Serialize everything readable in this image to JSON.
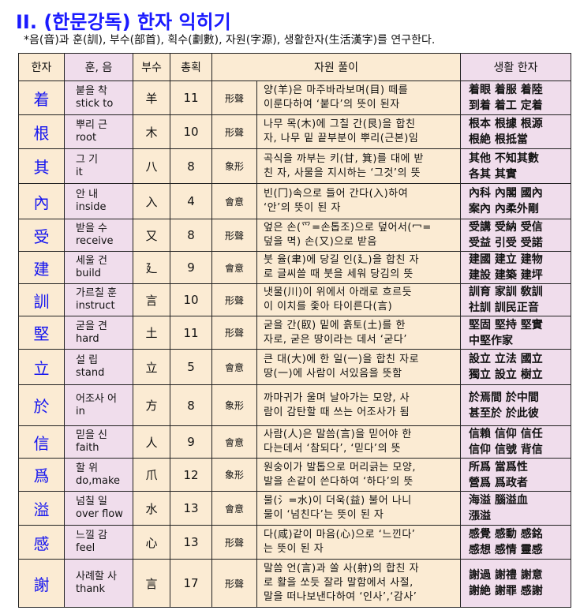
{
  "title": "II. (한문강독) 한자 익히기",
  "subtitle": "*음(音)과 훈(訓), 부수(部首), 획수(劃數), 자원(字源), 생활한자(生活漢字)를 연구한다.",
  "headers": [
    "한자",
    "훈, 음",
    "부수",
    "총획",
    "자원 풀이",
    "생활 한자"
  ],
  "rows": [
    {
      "hanja": "着",
      "hun": "붙을 착",
      "eng": "stick to",
      "radical": "羊",
      "strokes": "11",
      "type": "形聲",
      "desc": [
        "양(羊)은 마주바라보며(目) 떼를",
        "이룬다하여 ‘붙다’의 뜻이 된자"
      ],
      "life": [
        "着眼 着服 着陸",
        "到着 着工 定着"
      ]
    },
    {
      "hanja": "根",
      "hun": "뿌리 근",
      "eng": "root",
      "radical": "木",
      "strokes": "10",
      "type": "形聲",
      "desc": [
        "나무 목(木)에 그칠 간(艮)을 합친",
        "자, 나무 밑 끝부분이 뿌리(근본)임"
      ],
      "life": [
        "根本 根據 根源",
        "根絶 根抵當"
      ]
    },
    {
      "hanja": "其",
      "hun": "그 기",
      "eng": "it",
      "radical": "八",
      "strokes": "8",
      "type": "象形",
      "desc": [
        "곡식을 까부는 키(甘, 箕)를 대에 받",
        "친 자, 사물을 지시하는 ‘그것’의 뜻"
      ],
      "life": [
        "其他 不知其數",
        "各其 其實"
      ]
    },
    {
      "hanja": "內",
      "hun": "안 내",
      "eng": "inside",
      "radical": "入",
      "strokes": "4",
      "type": "會意",
      "desc": [
        "빈(冂)속으로 들어 간다(入)하여",
        "‘안’의 뜻이 된 자"
      ],
      "life": [
        "內科 內閣 國內",
        "案內 內柔外剛"
      ]
    },
    {
      "hanja": "受",
      "hun": "받을 수",
      "eng": "receive",
      "radical": "又",
      "strokes": "8",
      "type": "形聲",
      "desc": [
        "엎은 손(爫=손톱조)으로 덮어서(冖=",
        "덮을 멱) 손(又)으로 받음"
      ],
      "life": [
        "受講 受納 受信",
        "受益 引受 受諾"
      ]
    },
    {
      "hanja": "建",
      "hun": "세울 건",
      "eng": "build",
      "radical": "廴",
      "strokes": "9",
      "type": "會意",
      "desc": [
        "붓 율(聿)에 당길 인(廴)을 합친 자",
        "로 글씨쓸 때 붓을 세워 당김의 뜻"
      ],
      "life": [
        "建國 建立 建物",
        "建設 建築 建坪"
      ]
    },
    {
      "hanja": "訓",
      "hun": "가르칠 훈",
      "eng": "instruct",
      "radical": "言",
      "strokes": "10",
      "type": "形聲",
      "desc": [
        "냇물(川)이 위에서 아래로 흐르듯",
        "이 이치를 좇아 타이른다(言)"
      ],
      "life": [
        "訓育 家訓 敎訓",
        "社訓 訓民正音"
      ]
    },
    {
      "hanja": "堅",
      "hun": "굳을 견",
      "eng": "hard",
      "radical": "土",
      "strokes": "11",
      "type": "形聲",
      "desc": [
        "굳을 간(臤) 밑에 흙토(土)를 한",
        "자로, 굳은 땅이라는 데서 ‘굳다’"
      ],
      "life": [
        "堅固 堅持 堅實",
        "中堅作家"
      ]
    },
    {
      "hanja": "立",
      "hun": "설 립",
      "eng": "stand",
      "radical": "立",
      "strokes": "5",
      "type": "會意",
      "desc": [
        "큰 대(大)에 한 일(一)을 합친 자로",
        "땅(一)에 사람이 서있음을 뜻함"
      ],
      "life": [
        "設立 立法 國立",
        "獨立 設立 樹立"
      ]
    },
    {
      "hanja": "於",
      "hun": "어조사 어",
      "eng": "in",
      "radical": "方",
      "strokes": "8",
      "type": "象形",
      "desc": [
        "까마귀가 울며 날아가는 모양, 사",
        "람이 감탄할 때 쓰는 어조사가 됨"
      ],
      "life": [
        "於焉間 於中間",
        "甚至於 於此彼"
      ]
    },
    {
      "hanja": "信",
      "hun": "믿을 신",
      "eng": "faith",
      "radical": "人",
      "strokes": "9",
      "type": "會意",
      "desc": [
        "사람(人)은 말씀(言)을 믿어야 한",
        "다는데서 ‘참되다’, ‘믿다’의 뜻"
      ],
      "life": [
        "信賴 信仰 信任",
        "信仰 信號 背信"
      ]
    },
    {
      "hanja": "爲",
      "hun": "할 위",
      "eng": "do,make",
      "radical": "爪",
      "strokes": "12",
      "type": "象形",
      "desc": [
        "원숭이가 발톱으로 머리긁는 모양,",
        "발을 손같이 쓴다하여 ‘하다’의 뜻"
      ],
      "life": [
        "所爲 當爲性",
        "營爲 爲政者"
      ]
    },
    {
      "hanja": "溢",
      "hun": "넘칠 일",
      "eng": "over flow",
      "radical": "水",
      "strokes": "13",
      "type": "會意",
      "desc": [
        "물(氵=水)이 더욱(益) 불어 나니",
        "물이 ‘넘친다’는 뜻이 된 자"
      ],
      "life": [
        "海溢 腦溢血",
        "漲溢"
      ]
    },
    {
      "hanja": "感",
      "hun": "느낄 감",
      "eng": "feel",
      "radical": "心",
      "strokes": "13",
      "type": "形聲",
      "desc": [
        "다(咸)같이 마음(心)으로 ‘느낀다’",
        "는 뜻이 된 자"
      ],
      "life": [
        "感覺 感動 感銘",
        "感想 感情 靈感"
      ]
    },
    {
      "hanja": "謝",
      "hun": "사례할 사",
      "eng": "thank",
      "radical": "言",
      "strokes": "17",
      "type": "形聲",
      "desc": [
        "말씀 언(言)과 쏠 사(射)의 합친 자",
        "로 활을 쏘듯 잘라 말함에서 사절,",
        "말을 떠나보낸다하여 ‘인사’,‘감사’"
      ],
      "life": [
        "謝過 謝禮 謝意",
        "謝絶 謝罪 感謝"
      ]
    }
  ],
  "colors": {
    "hanja": "#1414f0",
    "title": "#1a1aff",
    "beige": "#fbebd3",
    "pink": "#f0ddec"
  }
}
